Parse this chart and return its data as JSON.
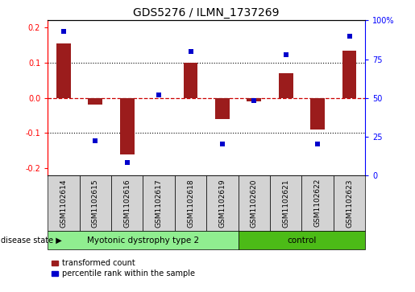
{
  "title": "GDS5276 / ILMN_1737269",
  "samples": [
    "GSM1102614",
    "GSM1102615",
    "GSM1102616",
    "GSM1102617",
    "GSM1102618",
    "GSM1102619",
    "GSM1102620",
    "GSM1102621",
    "GSM1102622",
    "GSM1102623"
  ],
  "red_bars": [
    0.155,
    -0.02,
    -0.16,
    0.0,
    0.1,
    -0.06,
    -0.01,
    0.07,
    -0.09,
    0.135
  ],
  "blue_dots_pct": [
    93,
    22,
    8,
    52,
    80,
    20,
    48,
    78,
    20,
    90
  ],
  "ylim": [
    -0.22,
    0.22
  ],
  "y_ticks_red": [
    -0.2,
    -0.1,
    0.0,
    0.1,
    0.2
  ],
  "y_ticks_blue_pct": [
    0,
    25,
    50,
    75,
    100
  ],
  "group1_label": "Myotonic dystrophy type 2",
  "group1_count": 6,
  "group2_label": "control",
  "group2_count": 4,
  "group1_color": "#90EE90",
  "group2_color": "#4CBB17",
  "bar_color": "#9B1C1C",
  "dot_color": "#0000CC",
  "zero_line_color": "#CC0000",
  "grid_color": "#000000",
  "sample_box_color": "#D3D3D3",
  "disease_state_label": "disease state",
  "legend_red_label": "transformed count",
  "legend_blue_label": "percentile rank within the sample",
  "title_fontsize": 10,
  "tick_fontsize": 7,
  "label_fontsize": 6.5,
  "ds_fontsize": 7.5
}
